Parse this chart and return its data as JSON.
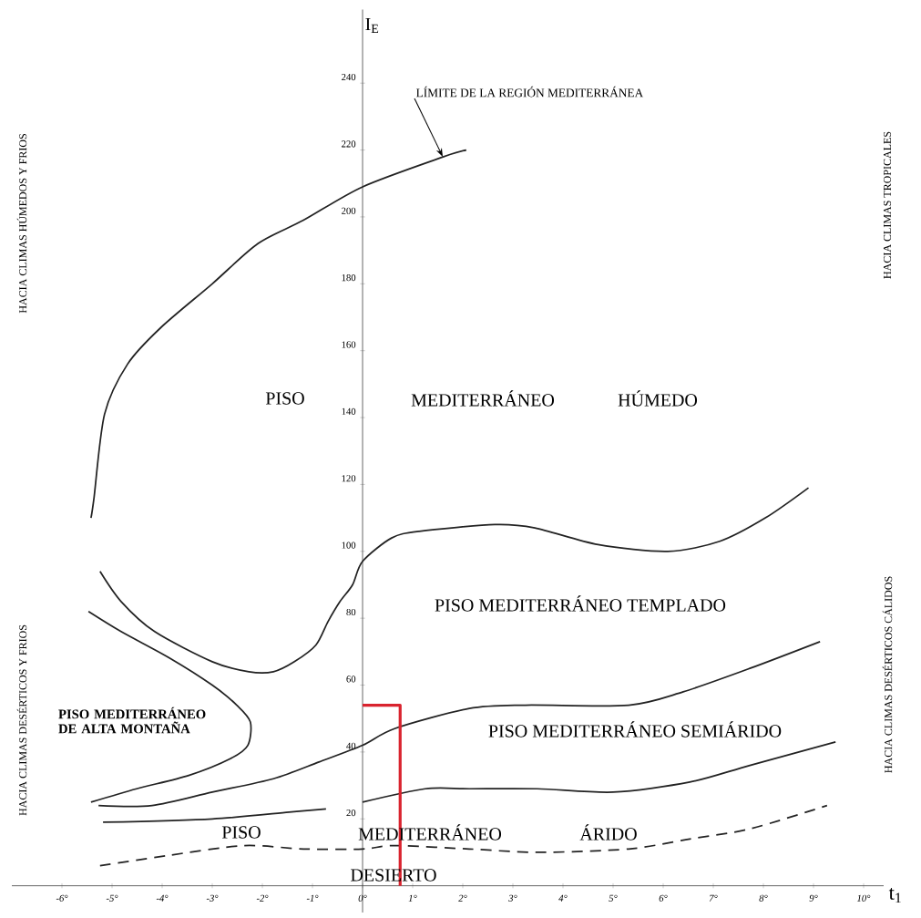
{
  "chart_data": {
    "type": "line",
    "xlabel": "t$_{1}$",
    "ylabel": "I$_{E}$",
    "xlim": [
      -7,
      10.4
    ],
    "ylim": [
      -8,
      262
    ],
    "xticks": [
      {
        "value": -6,
        "label": "-6°"
      },
      {
        "value": -5,
        "label": "-5°"
      },
      {
        "value": -4,
        "label": "-4°"
      },
      {
        "value": -3,
        "label": "-3°"
      },
      {
        "value": -2,
        "label": "-2°"
      },
      {
        "value": -1,
        "label": "-1°"
      },
      {
        "value": 0,
        "label": "0°"
      },
      {
        "value": 1,
        "label": "1°"
      },
      {
        "value": 2,
        "label": "2°"
      },
      {
        "value": 3,
        "label": "3°"
      },
      {
        "value": 4,
        "label": "4°"
      },
      {
        "value": 5,
        "label": "5°"
      },
      {
        "value": 6,
        "label": "6°"
      },
      {
        "value": 7,
        "label": "7°"
      },
      {
        "value": 8,
        "label": "8°"
      },
      {
        "value": 9,
        "label": "9°"
      },
      {
        "value": 10,
        "label": "10°"
      }
    ],
    "yticks": [
      20,
      40,
      60,
      80,
      100,
      120,
      140,
      160,
      180,
      200,
      220,
      240
    ],
    "series": [
      {
        "color": "#222222",
        "x": [
          -5.42,
          -5.36,
          -5.15,
          -4.69,
          -4.02,
          -3.0,
          -2.09,
          -1.18,
          0,
          1.62,
          2.07
        ],
        "values": [
          110,
          116,
          141,
          156,
          167,
          180,
          192,
          199,
          209,
          218,
          220
        ]
      },
      {
        "color": "#222222",
        "x": [
          -5.24,
          -4.82,
          -4.15,
          -3.0,
          -2.27,
          -1.78,
          -1.36,
          -0.93,
          -0.69,
          -0.45,
          -0.2,
          0,
          0.58,
          1.13,
          2.64,
          3.44,
          4.7,
          6.09,
          7.13,
          8.04,
          8.9
        ],
        "values": [
          94,
          85,
          76,
          67,
          64,
          64,
          67,
          72,
          79,
          85,
          90,
          97,
          104,
          106,
          108,
          107,
          102,
          100,
          103,
          110,
          119
        ]
      },
      {
        "color": "#222222",
        "x": [
          -5.47,
          -4.82,
          -3.84,
          -3.0,
          -2.51,
          -2.24,
          -2.29,
          -2.64,
          -3.47,
          -4.51,
          -5.42
        ],
        "values": [
          82,
          76,
          68,
          60,
          54,
          49,
          42,
          38,
          33,
          29,
          25
        ]
      },
      {
        "color": "#222222",
        "x": [
          -5.27,
          -4.2,
          -3.0,
          -1.78,
          -0.87,
          0,
          0.64,
          2.13,
          3.25,
          5.31,
          6.4,
          7.73,
          9.13
        ],
        "values": [
          24,
          24,
          28,
          32,
          37,
          42,
          47,
          53,
          54,
          54,
          58,
          65,
          73
        ]
      },
      {
        "color": "#222222",
        "x": [
          -5.18,
          -3.0,
          -1.47,
          -0.73,
          -0.35,
          0,
          1.25,
          2.13,
          3.49,
          5.0,
          6.53,
          7.73,
          9.44
        ],
        "values": [
          19,
          20,
          22,
          23,
          null,
          25,
          29,
          29,
          29,
          28,
          31,
          36,
          43
        ]
      },
      {
        "color": "#222222",
        "line_style": "dashed",
        "x": [
          -5.24,
          -3.91,
          -2.38,
          -1.18,
          0,
          0.64,
          2.13,
          3.49,
          5.31,
          6.53,
          7.73,
          9.27
        ],
        "values": [
          6,
          9,
          12,
          11,
          11,
          12,
          11,
          10,
          11,
          14,
          17,
          24
        ]
      },
      {
        "color": "#d9232e",
        "type": "step",
        "x": [
          0,
          0.75
        ],
        "values": [
          54,
          0
        ]
      }
    ],
    "annotations": [
      {
        "text": "LÍMITE DE LA REGIÓN MEDITERRÁNEA",
        "x": 1.6,
        "y": 218
      },
      "PISO",
      "MEDITERRÁNEO",
      "HÚMEDO",
      "PISO MEDITERRÁNEO TEMPLADO",
      "PISO MEDITERRÁNEO DE ALTA MONTAÑA",
      "PISO MEDITERRÁNEO SEMIÁRIDO",
      "PISO",
      "MEDITERRÁNEO",
      "ÁRIDO",
      "DESIERTO",
      "HACIA CLIMAS HÚMEDOS Y FRIOS",
      "HACIA CLIMAS DESÉRTICOS Y FRIOS",
      "HACIA CLIMAS TROPICALES",
      "HACIA CLIMAS DESÉRTICOS CÁLIDOS"
    ]
  }
}
